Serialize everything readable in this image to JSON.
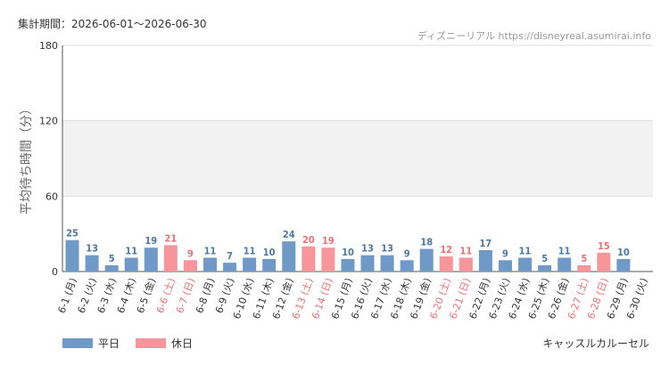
{
  "header": {
    "period": "集計期間：2026-06-01～2026-06-30",
    "credit": "ディズニーリアル https://disneyreal.asumirai.info"
  },
  "footer": {
    "attraction": "キャッスルカルーセル"
  },
  "colors": {
    "weekday": "#6f9ac8",
    "holiday": "#f6959a",
    "holiday_text": "#ee6f73",
    "band": "#f2f2f2",
    "grid": "#dddddd"
  },
  "chart_data": {
    "type": "bar",
    "ylabel": "平均待ち時間（分）",
    "ylim": [
      0,
      180
    ],
    "yticks": [
      0,
      60,
      120,
      180
    ],
    "categories": [
      "6-1 (月)",
      "6-2 (火)",
      "6-3 (水)",
      "6-4 (木)",
      "6-5 (金)",
      "6-6 (土)",
      "6-7 (日)",
      "6-8 (月)",
      "6-9 (火)",
      "6-10 (水)",
      "6-11 (木)",
      "6-12 (金)",
      "6-13 (土)",
      "6-14 (日)",
      "6-15 (月)",
      "6-16 (火)",
      "6-17 (水)",
      "6-18 (木)",
      "6-19 (金)",
      "6-20 (土)",
      "6-21 (日)",
      "6-22 (月)",
      "6-23 (火)",
      "6-24 (水)",
      "6-25 (木)",
      "6-26 (金)",
      "6-27 (土)",
      "6-28 (日)",
      "6-29 (月)",
      "6-30 (火)"
    ],
    "values": [
      25,
      13,
      5,
      11,
      19,
      21,
      9,
      11,
      7,
      11,
      10,
      24,
      20,
      19,
      10,
      13,
      13,
      9,
      18,
      12,
      11,
      17,
      9,
      11,
      5,
      11,
      5,
      15,
      10,
      null
    ],
    "day_type": [
      "weekday",
      "weekday",
      "weekday",
      "weekday",
      "weekday",
      "holiday",
      "holiday",
      "weekday",
      "weekday",
      "weekday",
      "weekday",
      "weekday",
      "holiday",
      "holiday",
      "weekday",
      "weekday",
      "weekday",
      "weekday",
      "weekday",
      "holiday",
      "holiday",
      "weekday",
      "weekday",
      "weekday",
      "weekday",
      "weekday",
      "holiday",
      "holiday",
      "weekday",
      "weekday"
    ],
    "legend": [
      {
        "label": "平日",
        "type": "weekday"
      },
      {
        "label": "休日",
        "type": "holiday"
      }
    ],
    "shaded_band": [
      60,
      120
    ],
    "grid": true,
    "legend_position": "bottom-left"
  }
}
